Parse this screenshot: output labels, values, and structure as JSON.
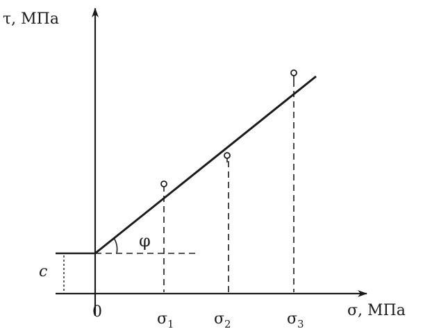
{
  "diagram": {
    "y_axis_label": "τ, МПа",
    "x_axis_label": "σ, МПа",
    "origin_label": "0",
    "intercept_label": "c",
    "angle_label": "φ",
    "sigma_labels": [
      {
        "symbol": "σ",
        "subscript": "1"
      },
      {
        "symbol": "σ",
        "subscript": "2"
      },
      {
        "symbol": "σ",
        "subscript": "3"
      }
    ]
  }
}
